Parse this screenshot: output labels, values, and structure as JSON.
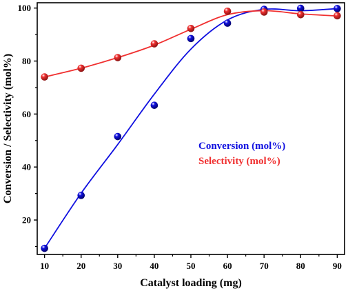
{
  "chart_data": {
    "type": "scatter",
    "title": "",
    "xlabel": "Catalyst loading (mg)",
    "ylabel": "Conversion / Selectivity (mol%)",
    "xlim": [
      8,
      92
    ],
    "ylim": [
      7,
      102
    ],
    "x_ticks": [
      10,
      20,
      30,
      40,
      50,
      60,
      70,
      80,
      90
    ],
    "y_ticks": [
      20,
      40,
      60,
      80,
      100
    ],
    "grid": false,
    "legend_position": "center-right",
    "series": [
      {
        "name": "Conversion (mol%)",
        "color": "#1010e0",
        "x": [
          10,
          20,
          30,
          40,
          50,
          60,
          70,
          80,
          90
        ],
        "y": [
          9.3,
          29.3,
          51.5,
          63.3,
          88.5,
          94.3,
          99.5,
          99.9,
          99.8
        ],
        "fit_x": [
          10,
          20,
          30,
          40,
          50,
          60,
          70,
          80,
          90
        ],
        "fit_y": [
          9.3,
          30.1,
          48.5,
          67.5,
          84.5,
          95.5,
          99.5,
          99.0,
          99.8
        ]
      },
      {
        "name": "Selectivity (mol%)",
        "color": "#f03030",
        "x": [
          10,
          20,
          30,
          40,
          50,
          60,
          70,
          80,
          90
        ],
        "y": [
          74.0,
          77.3,
          81.3,
          86.5,
          92.3,
          98.8,
          98.5,
          97.5,
          97.1
        ],
        "fit_x": [
          10,
          20,
          30,
          40,
          50,
          60,
          70,
          80,
          90
        ],
        "fit_y": [
          74.0,
          77.3,
          81.3,
          86.0,
          92.0,
          97.5,
          99.0,
          97.8,
          97.0
        ]
      }
    ]
  }
}
